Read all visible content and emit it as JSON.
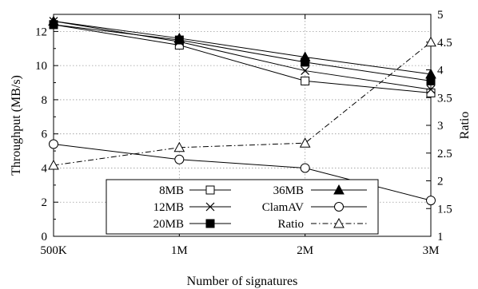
{
  "chart_data": {
    "type": "line",
    "xlabel": "Number of signatures",
    "ylabel": "Throughput (MB/s)",
    "y2label": "Ratio",
    "categories": [
      "500K",
      "1M",
      "2M",
      "3M"
    ],
    "ylim": [
      0,
      13
    ],
    "yticks": [
      0,
      2,
      4,
      6,
      8,
      10,
      12
    ],
    "y2lim": [
      1,
      5
    ],
    "y2ticks": [
      1,
      1.5,
      2,
      2.5,
      3,
      3.5,
      4,
      4.5,
      5
    ],
    "grid": true,
    "legend_position": "bottom-center",
    "series": [
      {
        "name": "8MB",
        "axis": "left",
        "marker": "square-open",
        "style": "solid",
        "values": [
          12.4,
          11.2,
          9.1,
          8.4
        ]
      },
      {
        "name": "12MB",
        "axis": "left",
        "marker": "x",
        "style": "solid",
        "values": [
          12.6,
          11.4,
          9.7,
          8.6
        ]
      },
      {
        "name": "20MB",
        "axis": "left",
        "marker": "square-filled",
        "style": "solid",
        "values": [
          12.4,
          11.5,
          10.2,
          9.1
        ]
      },
      {
        "name": "36MB",
        "axis": "left",
        "marker": "triangle-filled",
        "style": "solid",
        "values": [
          12.6,
          11.6,
          10.5,
          9.5
        ]
      },
      {
        "name": "ClamAV",
        "axis": "left",
        "marker": "circle-open",
        "style": "solid",
        "values": [
          5.4,
          4.5,
          4.0,
          2.1
        ]
      },
      {
        "name": "Ratio",
        "axis": "right",
        "marker": "triangle-open",
        "style": "dashdot",
        "values": [
          2.28,
          2.6,
          2.68,
          4.5
        ]
      }
    ]
  }
}
